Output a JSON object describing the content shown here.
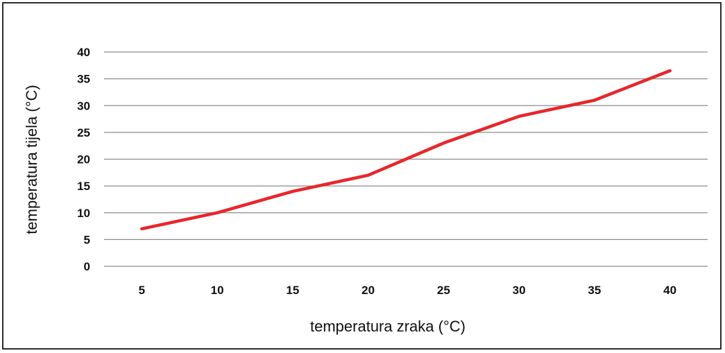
{
  "chart_data": {
    "type": "line",
    "title": "",
    "xlabel": "temperatura zraka (°C)",
    "ylabel": "temperatura tijela (°C)",
    "categories": [
      "5",
      "10",
      "15",
      "20",
      "25",
      "30",
      "35",
      "40"
    ],
    "series": [
      {
        "values": [
          7,
          10,
          14,
          17,
          23,
          28,
          31,
          36.5
        ]
      }
    ],
    "ylim": [
      0,
      40
    ],
    "yticks": [
      "0",
      "5",
      "10",
      "15",
      "20",
      "25",
      "30",
      "35",
      "40"
    ],
    "grid": true,
    "legend": "none",
    "colors": {
      "line": "#e8262b",
      "grid": "#8c8c8c",
      "frame": "#2b2b2b"
    }
  }
}
